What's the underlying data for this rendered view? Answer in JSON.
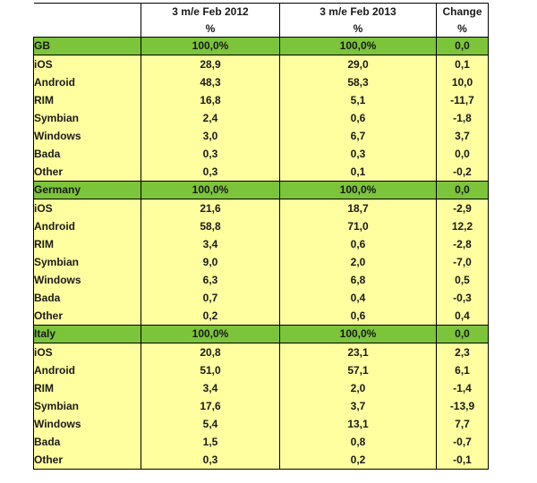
{
  "header": {
    "col1_title": "3 m/e Feb 2012",
    "col2_title": "3 m/e Feb 2013",
    "col3_title": "Change",
    "col1_unit": "%",
    "col2_unit": "%",
    "col3_unit": "%"
  },
  "sections": [
    {
      "name": "GB",
      "total": [
        "100,0%",
        "100,0%",
        "0,0"
      ],
      "rows": [
        {
          "label": "iOS",
          "v2012": "28,9",
          "v2013": "29,0",
          "change": "0,1"
        },
        {
          "label": "Android",
          "v2012": "48,3",
          "v2013": "58,3",
          "change": "10,0"
        },
        {
          "label": "RIM",
          "v2012": "16,8",
          "v2013": "5,1",
          "change": "-11,7"
        },
        {
          "label": "Symbian",
          "v2012": "2,4",
          "v2013": "0,6",
          "change": "-1,8"
        },
        {
          "label": "Windows",
          "v2012": "3,0",
          "v2013": "6,7",
          "change": "3,7"
        },
        {
          "label": "Bada",
          "v2012": "0,3",
          "v2013": "0,3",
          "change": "0,0"
        },
        {
          "label": "Other",
          "v2012": "0,3",
          "v2013": "0,1",
          "change": "-0,2"
        }
      ]
    },
    {
      "name": "Germany",
      "total": [
        "100,0%",
        "100,0%",
        "0,0"
      ],
      "rows": [
        {
          "label": "iOS",
          "v2012": "21,6",
          "v2013": "18,7",
          "change": "-2,9"
        },
        {
          "label": "Android",
          "v2012": "58,8",
          "v2013": "71,0",
          "change": "12,2"
        },
        {
          "label": "RIM",
          "v2012": "3,4",
          "v2013": "0,6",
          "change": "-2,8"
        },
        {
          "label": "Symbian",
          "v2012": "9,0",
          "v2013": "2,0",
          "change": "-7,0"
        },
        {
          "label": "Windows",
          "v2012": "6,3",
          "v2013": "6,8",
          "change": "0,5"
        },
        {
          "label": "Bada",
          "v2012": "0,7",
          "v2013": "0,4",
          "change": "-0,3"
        },
        {
          "label": "Other",
          "v2012": "0,2",
          "v2013": "0,6",
          "change": "0,4"
        }
      ]
    },
    {
      "name": "Italy",
      "total": [
        "100,0%",
        "100,0%",
        "0,0"
      ],
      "rows": [
        {
          "label": "iOS",
          "v2012": "20,8",
          "v2013": "23,1",
          "change": "2,3"
        },
        {
          "label": "Android",
          "v2012": "51,0",
          "v2013": "57,1",
          "change": "6,1"
        },
        {
          "label": "RIM",
          "v2012": "3,4",
          "v2013": "2,0",
          "change": "-1,4"
        },
        {
          "label": "Symbian",
          "v2012": "17,6",
          "v2013": "3,7",
          "change": "-13,9"
        },
        {
          "label": "Windows",
          "v2012": "5,4",
          "v2013": "13,1",
          "change": "7,7"
        },
        {
          "label": "Bada",
          "v2012": "1,5",
          "v2013": "0,8",
          "change": "-0,7"
        },
        {
          "label": "Other",
          "v2012": "0,3",
          "v2013": "0,2",
          "change": "-0,1"
        }
      ]
    }
  ],
  "colors": {
    "section_bg": "#7cc43a",
    "row_bg": "#ffff9f",
    "border": "#000000"
  }
}
